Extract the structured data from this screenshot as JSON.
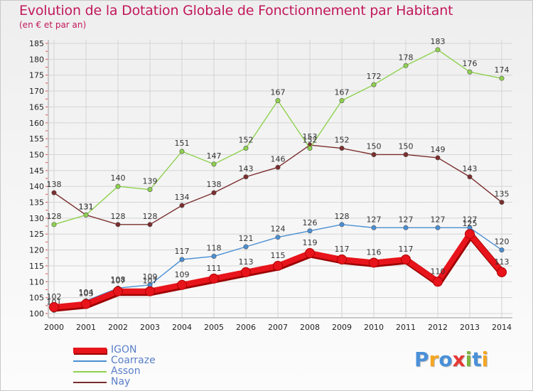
{
  "title": "Evolution de la Dotation Globale de Fonctionnement par Habitant",
  "subtitle": "(en € et par an)",
  "logo": {
    "text": "Proxiti",
    "letter_colors": [
      "#4a90d9",
      "#f5a623",
      "#4a90d9",
      "#e53935",
      "#7cb342",
      "#4a90d9",
      "#f5a623"
    ]
  },
  "chart_data": {
    "type": "line",
    "title": "Evolution de la Dotation Globale de Fonctionnement par Habitant",
    "subtitle": "(en € et par an)",
    "xlabel": "",
    "ylabel": "",
    "x": [
      "2000",
      "2001",
      "2002",
      "2003",
      "2004",
      "2005",
      "2006",
      "2007",
      "2008",
      "2009",
      "2010",
      "2011",
      "2012",
      "2013",
      "2014"
    ],
    "ylim": [
      100,
      185
    ],
    "yticks": [
      "100",
      "105",
      "110",
      "115",
      "120",
      "125",
      "130",
      "135",
      "140",
      "145",
      "150",
      "155",
      "160",
      "165",
      "170",
      "175",
      "180",
      "185"
    ],
    "grid": true,
    "legend_position": "bottom-left",
    "series": [
      {
        "name": "Nay",
        "color": "#7b2d2d",
        "values": [
          138,
          131,
          128,
          128,
          134,
          138,
          143,
          146,
          153,
          152,
          150,
          150,
          149,
          143,
          135
        ]
      },
      {
        "name": "Asson",
        "color": "#8fd14f",
        "values": [
          128,
          131,
          140,
          139,
          151,
          147,
          152,
          167,
          152,
          167,
          172,
          178,
          183,
          176,
          174
        ]
      },
      {
        "name": "Coarraze",
        "color": "#4a8fd4",
        "values": [
          101,
          104,
          108,
          109,
          117,
          118,
          121,
          124,
          126,
          128,
          127,
          127,
          127,
          127,
          120
        ]
      },
      {
        "name": "IGON",
        "color": "#e8141b",
        "values": [
          102,
          103,
          107,
          107,
          109,
          111,
          113,
          115,
          119,
          117,
          116,
          117,
          110,
          125,
          113
        ]
      }
    ],
    "legend": [
      "IGON",
      "Coarraze",
      "Asson",
      "Nay"
    ]
  }
}
